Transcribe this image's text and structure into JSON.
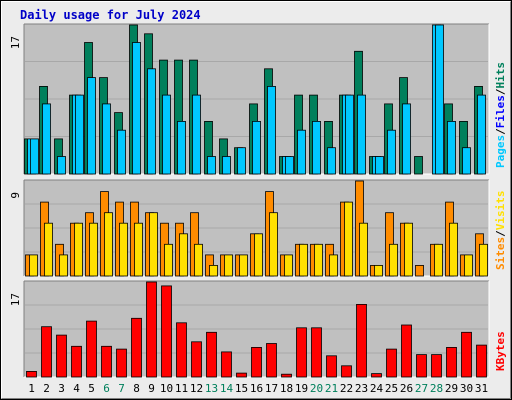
{
  "chart_data": [
    {
      "type": "bar",
      "panel": "pages-files-hits",
      "title": "Daily usage for July 2024",
      "y_max_label": "17",
      "ylim": [
        0,
        17
      ],
      "categories": [
        "1",
        "2",
        "3",
        "4",
        "5",
        "6",
        "7",
        "8",
        "9",
        "10",
        "11",
        "12",
        "13",
        "14",
        "15",
        "16",
        "17",
        "18",
        "19",
        "20",
        "21",
        "22",
        "23",
        "24",
        "25",
        "26",
        "27",
        "28",
        "29",
        "30",
        "31"
      ],
      "weekend_days": [
        "6",
        "7",
        "13",
        "14",
        "20",
        "21",
        "27",
        "28"
      ],
      "axis_label_parts": [
        "Pages",
        "/",
        "Files",
        "/",
        "Hits"
      ],
      "grid": true,
      "series": [
        {
          "name": "Hits",
          "color": "#00805c",
          "values": [
            4,
            10,
            4,
            9,
            15,
            11,
            7,
            17,
            16,
            13,
            13,
            13,
            6,
            4,
            3,
            8,
            12,
            2,
            9,
            9,
            6,
            9,
            14,
            2,
            8,
            11,
            2,
            0,
            8,
            6,
            10
          ]
        },
        {
          "name": "Files",
          "color": "#00c8ff",
          "values": [
            4,
            8,
            2,
            9,
            11,
            8,
            5,
            15,
            12,
            9,
            6,
            9,
            2,
            2,
            3,
            6,
            10,
            2,
            5,
            6,
            3,
            9,
            9,
            2,
            5,
            8,
            0,
            17,
            6,
            3,
            9
          ]
        },
        {
          "name": "Pages",
          "color": "#00c8ff",
          "values": [
            4,
            0,
            0,
            9,
            0,
            0,
            0,
            0,
            0,
            0,
            0,
            0,
            0,
            0,
            0,
            0,
            0,
            2,
            0,
            0,
            0,
            9,
            0,
            2,
            0,
            0,
            0,
            17,
            0,
            0,
            0
          ]
        }
      ]
    },
    {
      "type": "bar",
      "panel": "sites-visits",
      "y_max_label": "9",
      "ylim": [
        0,
        9
      ],
      "categories": [
        "1",
        "2",
        "3",
        "4",
        "5",
        "6",
        "7",
        "8",
        "9",
        "10",
        "11",
        "12",
        "13",
        "14",
        "15",
        "16",
        "17",
        "18",
        "19",
        "20",
        "21",
        "22",
        "23",
        "24",
        "25",
        "26",
        "27",
        "28",
        "29",
        "30",
        "31"
      ],
      "axis_label_parts": [
        "Sites",
        "/",
        "Visits"
      ],
      "grid": true,
      "series": [
        {
          "name": "Visits",
          "color": "#ff8c00",
          "values": [
            2,
            7,
            3,
            5,
            6,
            8,
            7,
            7,
            6,
            5,
            5,
            6,
            2,
            2,
            2,
            4,
            8,
            2,
            3,
            3,
            3,
            7,
            9,
            1,
            6,
            5,
            1,
            3,
            7,
            2,
            4
          ]
        },
        {
          "name": "Sites",
          "color": "#ffe000",
          "values": [
            2,
            5,
            2,
            5,
            5,
            6,
            5,
            5,
            6,
            3,
            4,
            3,
            1,
            2,
            2,
            4,
            6,
            2,
            3,
            3,
            2,
            7,
            5,
            1,
            3,
            5,
            0,
            3,
            5,
            2,
            3
          ]
        }
      ]
    },
    {
      "type": "bar",
      "panel": "kbytes",
      "y_max_label": "17",
      "ylim": [
        0,
        17
      ],
      "categories": [
        "1",
        "2",
        "3",
        "4",
        "5",
        "6",
        "7",
        "8",
        "9",
        "10",
        "11",
        "12",
        "13",
        "14",
        "15",
        "16",
        "17",
        "18",
        "19",
        "20",
        "21",
        "22",
        "23",
        "24",
        "25",
        "26",
        "27",
        "28",
        "29",
        "30",
        "31"
      ],
      "axis_label_parts": [
        "KBytes"
      ],
      "grid": true,
      "series": [
        {
          "name": "KBytes",
          "color": "#ff0000",
          "values": [
            1,
            9,
            7.5,
            5.5,
            10,
            5.5,
            5,
            10.5,
            17,
            16.3,
            9.7,
            6.3,
            8,
            4.5,
            0.7,
            5.3,
            6,
            0.5,
            8.8,
            8.8,
            3.8,
            2,
            13,
            0.6,
            5,
            9.3,
            4,
            4,
            5.3,
            8,
            5.7
          ]
        }
      ]
    }
  ],
  "theme": {
    "background": "#ececec",
    "panel_fill": "#c0c0c0",
    "grid_color": "#a8a8a8",
    "title_color": "#0000c8",
    "weekday_label_color": "#000000",
    "weekend_label_color": "#00805c",
    "separator_colors": [
      "#000000"
    ]
  }
}
